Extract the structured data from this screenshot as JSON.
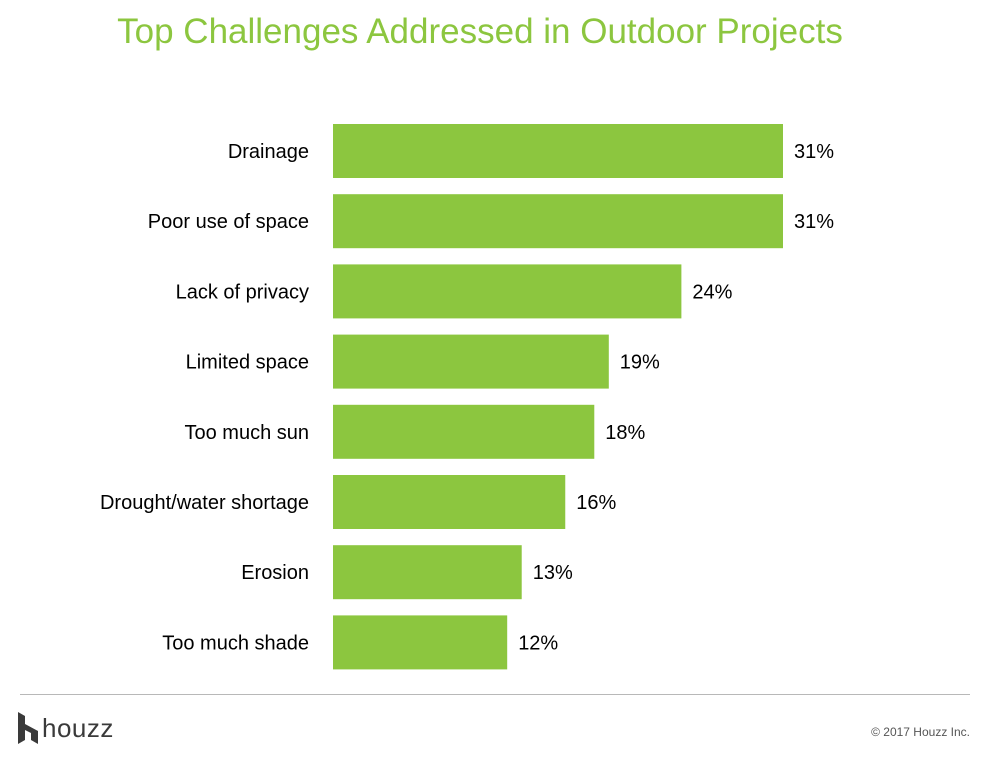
{
  "title": "Top Challenges Addressed in Outdoor Projects",
  "footer": {
    "brand": "houzz",
    "copyright": "© 2017 Houzz Inc."
  },
  "colors": {
    "accent": "#8cc63f",
    "bar": "#8cc63f"
  },
  "icons": [
    "houzz-logo-icon"
  ],
  "chart_data": {
    "type": "bar",
    "orientation": "horizontal",
    "categories": [
      "Drainage",
      "Poor use of space",
      "Lack of privacy",
      "Limited space",
      "Too much sun",
      "Drought/water shortage",
      "Erosion",
      "Too much shade"
    ],
    "values": [
      31,
      31,
      24,
      19,
      18,
      16,
      13,
      12
    ],
    "data_labels": [
      "31%",
      "31%",
      "24%",
      "19%",
      "18%",
      "16%",
      "13%",
      "12%"
    ],
    "xlim": [
      0,
      31
    ],
    "grid": false,
    "legend": "none"
  }
}
